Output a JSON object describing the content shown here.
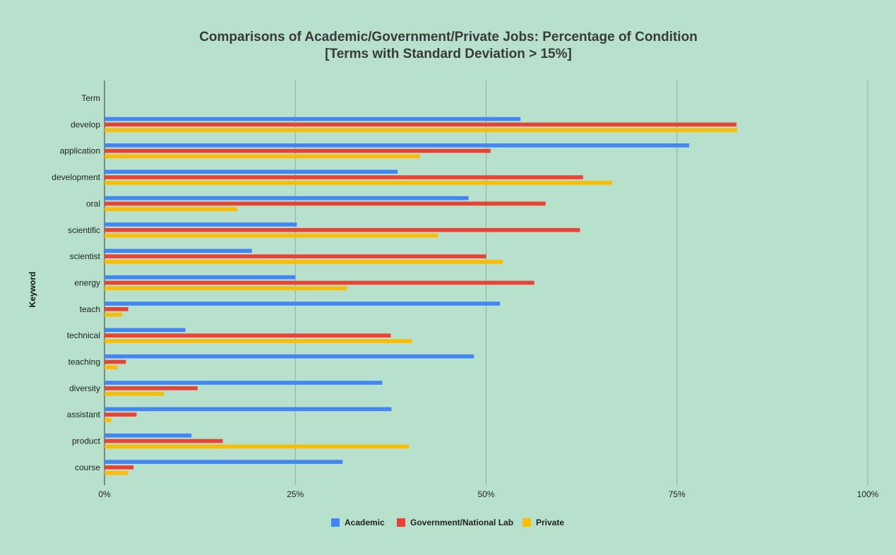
{
  "chart_data": {
    "type": "bar",
    "orientation": "horizontal",
    "title_line1": "Comparisons of Academic/Government/Private Jobs: Percentage of Condition",
    "title_line2": "[Terms with Standard Deviation > 15%]",
    "ylabel": "Keyword",
    "xlim": [
      0,
      100
    ],
    "x_ticks": [
      "0%",
      "25%",
      "50%",
      "75%",
      "100%"
    ],
    "grid": "vertical",
    "legend_position": "bottom",
    "categories": [
      "Term",
      "develop",
      "application",
      "development",
      "oral",
      "scientific",
      "scientist",
      "energy",
      "teach",
      "technical",
      "teaching",
      "diversity",
      "assistant",
      "product",
      "course"
    ],
    "series": [
      {
        "name": "Academic",
        "color": "#4285f4",
        "values": [
          null,
          54.5,
          76.6,
          38.4,
          47.7,
          25.2,
          19.3,
          25.0,
          51.8,
          10.6,
          48.4,
          36.4,
          37.6,
          11.4,
          31.2
        ]
      },
      {
        "name": "Government/National Lab",
        "color": "#ea4335",
        "values": [
          null,
          82.8,
          50.6,
          62.7,
          57.8,
          62.3,
          50.0,
          56.3,
          3.1,
          37.5,
          2.8,
          12.2,
          4.2,
          15.5,
          3.8
        ]
      },
      {
        "name": "Private",
        "color": "#fbbc04",
        "values": [
          null,
          82.9,
          41.3,
          66.5,
          17.4,
          43.7,
          52.2,
          31.8,
          2.3,
          40.3,
          1.7,
          7.8,
          0.9,
          39.9,
          3.1
        ]
      }
    ]
  }
}
